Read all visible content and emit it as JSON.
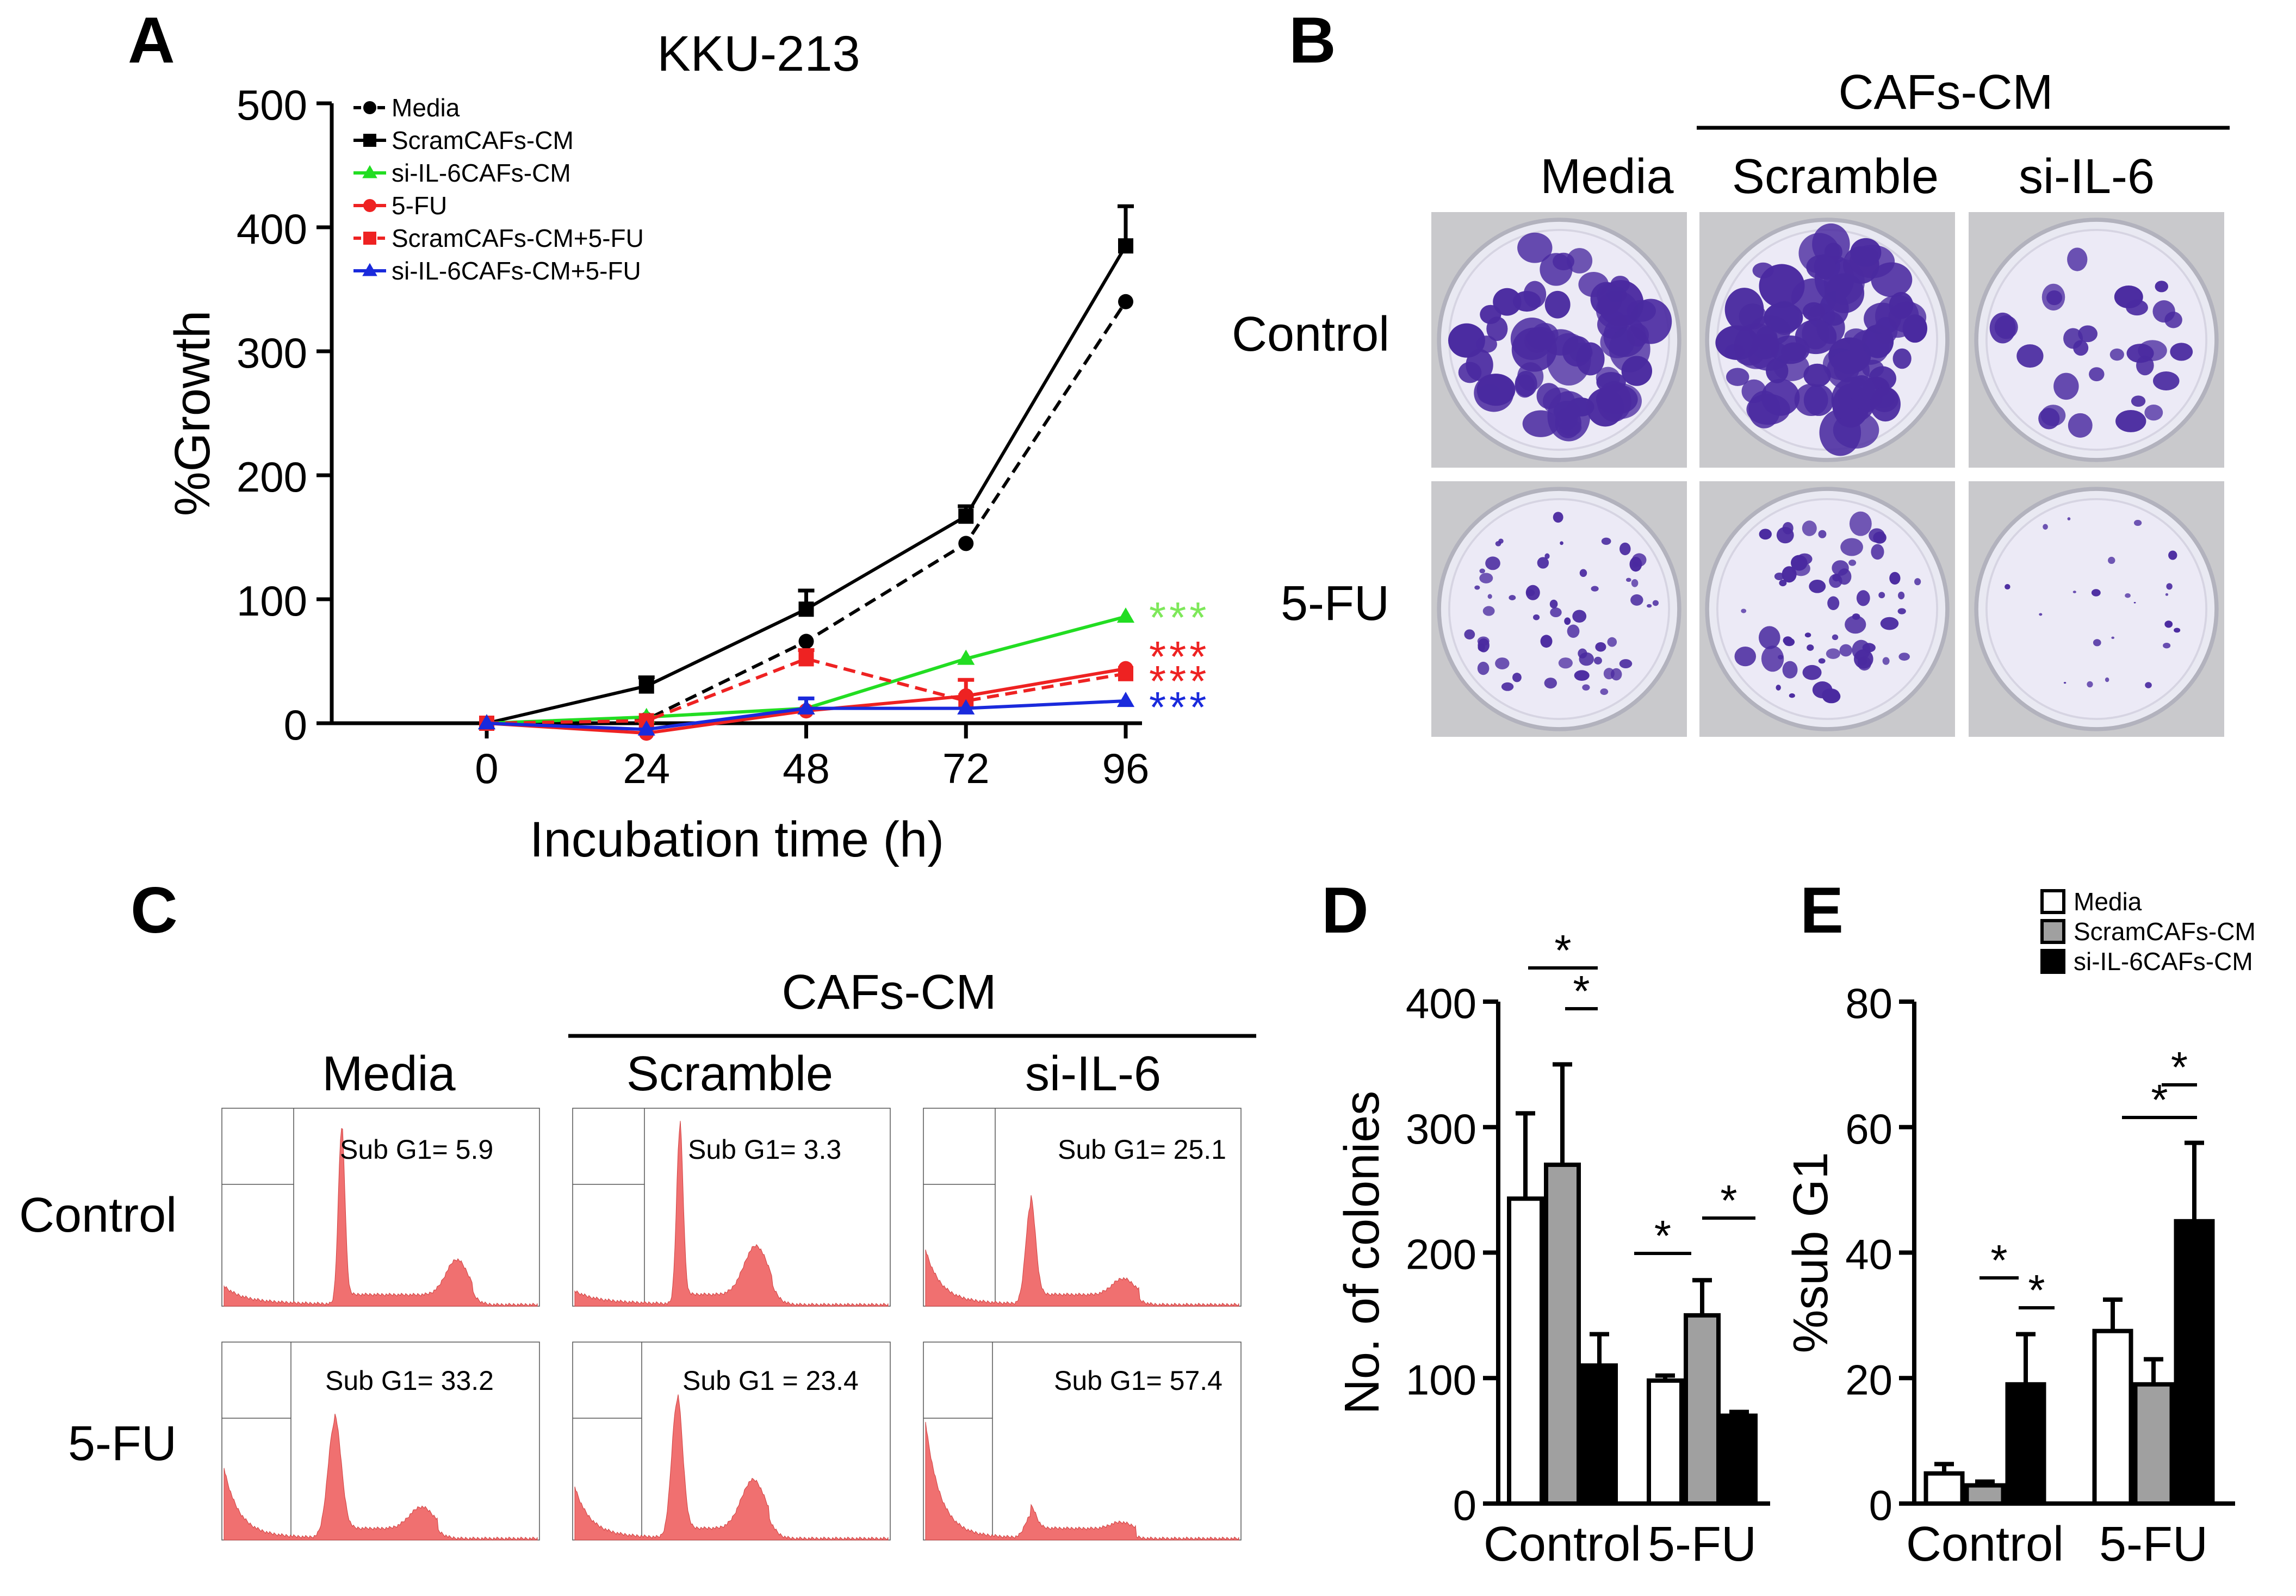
{
  "panels": {
    "A": {
      "letter": "A",
      "title": "KKU-213",
      "chart_data": {
        "type": "line",
        "title": "KKU-213",
        "xlabel": "Incubation time (h)",
        "ylabel": "%Growth",
        "x": [
          0,
          24,
          48,
          72,
          96
        ],
        "xticks": [
          "0",
          "24",
          "48",
          "72",
          "96"
        ],
        "yticks": [
          "0",
          "100",
          "200",
          "300",
          "400",
          "500"
        ],
        "ylim": [
          0,
          500
        ],
        "legend_position": "top-left",
        "series": [
          {
            "name": "Media",
            "values": [
              0,
              3,
              66,
              145,
              340
            ],
            "err": [
              0,
              0,
              0,
              0,
              0
            ],
            "color": "#000000",
            "dash": true,
            "marker": "circle"
          },
          {
            "name": "ScramCAFs-CM",
            "values": [
              0,
              30,
              92,
              167,
              385
            ],
            "err": [
              0,
              7,
              15,
              8,
              32
            ],
            "color": "#000000",
            "dash": false,
            "marker": "square"
          },
          {
            "name": "si-IL-6CAFs-CM",
            "values": [
              0,
              5,
              12,
              52,
              86
            ],
            "err": [
              0,
              0,
              0,
              0,
              0
            ],
            "color": "#22dd22",
            "dash": false,
            "marker": "triangle"
          },
          {
            "name": "5-FU",
            "values": [
              0,
              -8,
              10,
              22,
              44
            ],
            "err": [
              0,
              0,
              0,
              13,
              0
            ],
            "color": "#ee2222",
            "dash": false,
            "marker": "circle"
          },
          {
            "name": "ScramCAFs-CM+5-FU",
            "values": [
              0,
              2,
              52,
              18,
              40
            ],
            "err": [
              0,
              0,
              7,
              0,
              0
            ],
            "color": "#ee2222",
            "dash": true,
            "marker": "square"
          },
          {
            "name": "si-IL-6CAFs-CM+5-FU",
            "values": [
              0,
              -5,
              12,
              12,
              18
            ],
            "err": [
              0,
              0,
              8,
              0,
              0
            ],
            "color": "#1a2adc",
            "dash": false,
            "marker": "triangle"
          }
        ],
        "significance": [
          {
            "text": "***",
            "color": "#7ee85a"
          },
          {
            "text": "***",
            "color": "#ee2222"
          },
          {
            "text": "***",
            "color": "#ee2222"
          },
          {
            "text": "***",
            "color": "#1a2adc"
          }
        ]
      }
    },
    "B": {
      "letter": "B",
      "group_label": "CAFs-CM",
      "columns": [
        "Media",
        "Scramble",
        "si-IL-6"
      ],
      "rows": [
        "Control",
        "5-FU"
      ],
      "dish_color": "#4a2aa0"
    },
    "C": {
      "letter": "C",
      "group_label": "CAFs-CM",
      "columns": [
        "Media",
        "Scramble",
        "si-IL-6"
      ],
      "rows": [
        "Control",
        "5-FU"
      ],
      "histogram_color": "#f07070",
      "subg1": [
        "Sub G1= 5.9",
        "Sub G1= 3.3",
        "Sub G1= 25.1",
        "Sub G1= 33.2",
        "Sub G1 = 23.4",
        "Sub G1= 57.4"
      ],
      "subg1_values": [
        5.9,
        3.3,
        25.1,
        33.2,
        23.4,
        57.4
      ]
    },
    "D": {
      "letter": "D",
      "chart_data": {
        "type": "bar",
        "categories": [
          "Control",
          "5-FU"
        ],
        "ylabel": "No. of colonies",
        "ylim": [
          0,
          400
        ],
        "yticks": [
          "0",
          "100",
          "200",
          "300",
          "400"
        ],
        "series": [
          {
            "name": "Media",
            "values": [
              243,
              98
            ],
            "err": [
              68,
              4
            ],
            "color": "#ffffff"
          },
          {
            "name": "ScramCAFs-CM",
            "values": [
              270,
              150
            ],
            "err": [
              80,
              28
            ],
            "color": "#a0a0a0"
          },
          {
            "name": "si-IL-6CAFs-CM",
            "values": [
              110,
              70
            ],
            "err": [
              25,
              3
            ],
            "color": "#000000"
          }
        ],
        "significance": "*"
      }
    },
    "E": {
      "letter": "E",
      "chart_data": {
        "type": "bar",
        "categories": [
          "Control",
          "5-FU"
        ],
        "ylabel": "%sub G1",
        "ylim": [
          0,
          80
        ],
        "yticks": [
          "0",
          "20",
          "40",
          "60",
          "80"
        ],
        "legend_position": "top-right",
        "series": [
          {
            "name": "Media",
            "values": [
              4.8,
              27.5
            ],
            "err": [
              1.5,
              5
            ],
            "color": "#ffffff"
          },
          {
            "name": "ScramCAFs-CM",
            "values": [
              2.9,
              19
            ],
            "err": [
              0.6,
              4
            ],
            "color": "#a0a0a0"
          },
          {
            "name": "si-IL-6CAFs-CM",
            "values": [
              19,
              45
            ],
            "err": [
              8,
              12.5
            ],
            "color": "#000000"
          }
        ],
        "significance": "*"
      }
    }
  }
}
